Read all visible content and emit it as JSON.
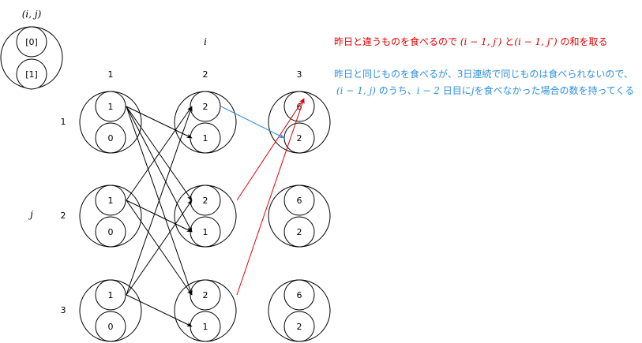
{
  "legend_key": {
    "title": "(i, j)",
    "top_slot": "[0]",
    "bottom_slot": "[1]"
  },
  "axes": {
    "i_label": "i",
    "j_label": "j",
    "columns": [
      "1",
      "2",
      "3"
    ],
    "rows": [
      "1",
      "2",
      "3"
    ]
  },
  "nodes": [
    {
      "id": "n11",
      "col": 1,
      "row": 1,
      "top": "1",
      "bottom": "0"
    },
    {
      "id": "n12",
      "col": 1,
      "row": 2,
      "top": "1",
      "bottom": "0"
    },
    {
      "id": "n13",
      "col": 1,
      "row": 3,
      "top": "1",
      "bottom": "0"
    },
    {
      "id": "n21",
      "col": 2,
      "row": 1,
      "top": "2",
      "bottom": "1"
    },
    {
      "id": "n22",
      "col": 2,
      "row": 2,
      "top": "2",
      "bottom": "1"
    },
    {
      "id": "n23",
      "col": 2,
      "row": 3,
      "top": "2",
      "bottom": "1"
    },
    {
      "id": "n31",
      "col": 3,
      "row": 1,
      "top": "6",
      "bottom": "2"
    },
    {
      "id": "n32",
      "col": 3,
      "row": 2,
      "top": "6",
      "bottom": "2"
    },
    {
      "id": "n33",
      "col": 3,
      "row": 3,
      "top": "6",
      "bottom": "2"
    }
  ],
  "edges": [
    {
      "from": "n11.top",
      "to": "n21.bottom",
      "kind": "black"
    },
    {
      "from": "n11.top",
      "to": "n22.top",
      "kind": "black"
    },
    {
      "from": "n11.top",
      "to": "n22.bottom",
      "kind": "black"
    },
    {
      "from": "n11.top",
      "to": "n23.top",
      "kind": "black"
    },
    {
      "from": "n12.top",
      "to": "n21.top",
      "kind": "black"
    },
    {
      "from": "n12.top",
      "to": "n22.bottom",
      "kind": "black"
    },
    {
      "from": "n12.top",
      "to": "n23.top",
      "kind": "black"
    },
    {
      "from": "n13.top",
      "to": "n21.top",
      "kind": "black"
    },
    {
      "from": "n13.top",
      "to": "n22.top",
      "kind": "black"
    },
    {
      "from": "n13.top",
      "to": "n23.bottom",
      "kind": "black"
    },
    {
      "from": "n22.top",
      "to": "n31.top",
      "kind": "red"
    },
    {
      "from": "n23.top",
      "to": "n31.top",
      "kind": "red"
    },
    {
      "from": "n21.top",
      "to": "n31.bottom",
      "kind": "blue"
    }
  ],
  "legend": {
    "red": {
      "text1": "昨日と違うものを食べるので",
      "math1": "(i − 1, j′)",
      "text2": "と",
      "math2": "(i − 1, j″)",
      "text3": "の和を取る",
      "color": "#e00000"
    },
    "blue": {
      "line1": "昨日と同じものを食べるが、3日連続で同じものは食べられないので、",
      "math1": "(i − 1, j)",
      "text1": "のうち、",
      "math2": "i − 2",
      "text2": "日目に",
      "math3": "j",
      "text3": "を食べなかった場合の数を持ってくる",
      "color": "#2f8fe0"
    }
  }
}
